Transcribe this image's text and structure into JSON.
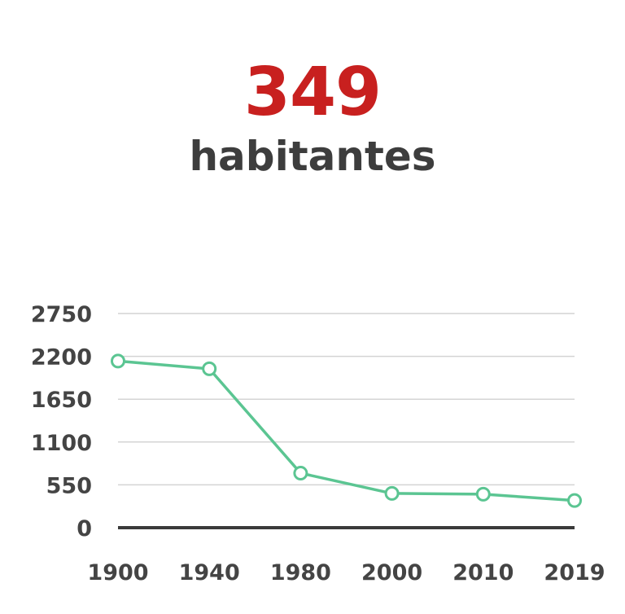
{
  "population": {
    "value": "349",
    "label": "habitantes"
  },
  "chart_data": {
    "type": "line",
    "categories": [
      "1900",
      "1940",
      "1980",
      "2000",
      "2010",
      "2019"
    ],
    "values": [
      2140,
      2040,
      700,
      440,
      430,
      349
    ],
    "yticks": [
      0,
      550,
      1100,
      1650,
      2200,
      2750
    ],
    "ylim": [
      0,
      2750
    ],
    "grid": true,
    "colors": {
      "line": "#5bc592",
      "grid": "#d4d4d4",
      "baseline": "#3a3a3a",
      "tick_text": "#444444"
    }
  }
}
